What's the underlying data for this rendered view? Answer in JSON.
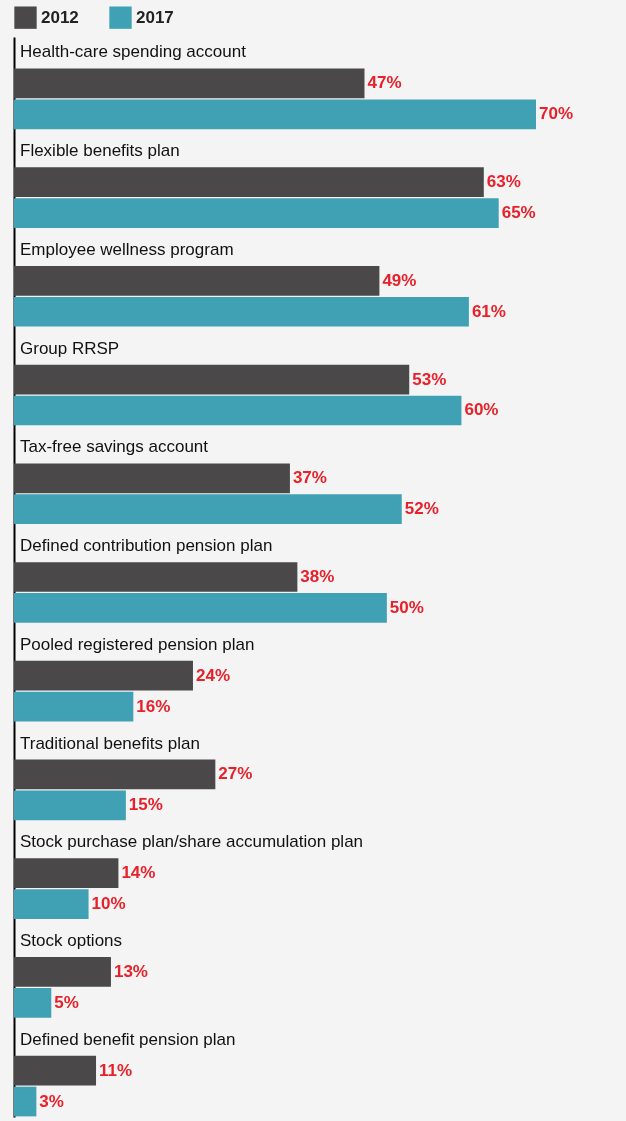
{
  "chart_data": {
    "type": "bar",
    "orientation": "horizontal",
    "legend": "top left",
    "categories": [
      "Health-care spending account",
      "Flexible benefits plan",
      "Employee wellness program",
      "Group RRSP",
      "Tax-free savings account",
      "Defined contribution pension plan",
      "Pooled registered pension plan",
      "Traditional benefits plan",
      "Stock purchase plan/share accumulation plan",
      "Stock options",
      "Defined benefit pension plan"
    ],
    "series": [
      {
        "name": "2012",
        "color": "#4a4849",
        "values": [
          47,
          63,
          49,
          53,
          37,
          38,
          24,
          27,
          14,
          13,
          11
        ],
        "value_labels": [
          "47%",
          "63%",
          "49%",
          "53%",
          "37%",
          "38%",
          "24%",
          "27%",
          "14%",
          "13%",
          "11%"
        ]
      },
      {
        "name": "2017",
        "color": "#40a0b4",
        "values": [
          70,
          65,
          61,
          60,
          52,
          50,
          16,
          15,
          10,
          5,
          3
        ],
        "value_labels": [
          "70%",
          "65%",
          "61%",
          "60%",
          "52%",
          "50%",
          "16%",
          "15%",
          "10%",
          "5%",
          "3%"
        ]
      }
    ]
  }
}
